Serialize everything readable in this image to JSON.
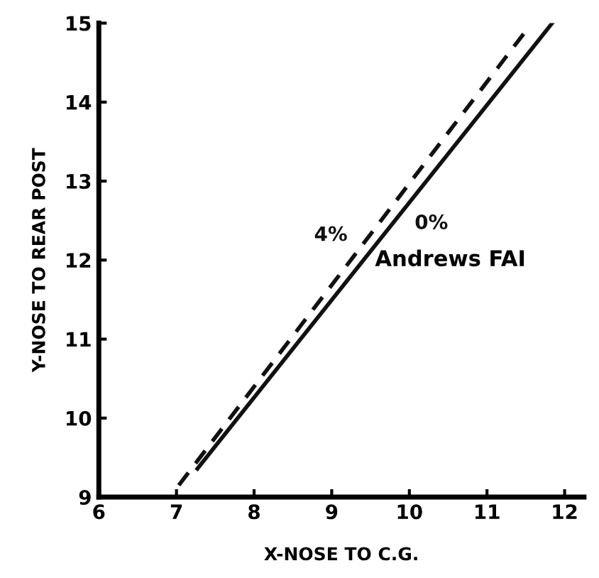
{
  "chart_data": {
    "type": "line",
    "xlabel": "X-NOSE TO C.G.",
    "ylabel": "Y-NOSE TO REAR POST",
    "series": [
      {
        "name": "4%",
        "color": "#111111",
        "line_style": "dashed",
        "x": [
          7.03,
          11.5
        ],
        "values": [
          9.15,
          14.9
        ]
      },
      {
        "name": "0%",
        "color": "#111111",
        "line_style": "solid",
        "x": [
          7.27,
          11.84
        ],
        "values": [
          9.36,
          15.0
        ]
      }
    ],
    "annotations": [
      "Andrews FAI"
    ],
    "xlim": [
      6,
      12.25
    ],
    "ylim": [
      9,
      15
    ],
    "xticks": [
      6,
      7,
      8,
      9,
      10,
      11,
      12
    ],
    "yticks": [
      9,
      10,
      11,
      12,
      13,
      14,
      15
    ],
    "grid": false,
    "legend": false,
    "marker": "none"
  }
}
